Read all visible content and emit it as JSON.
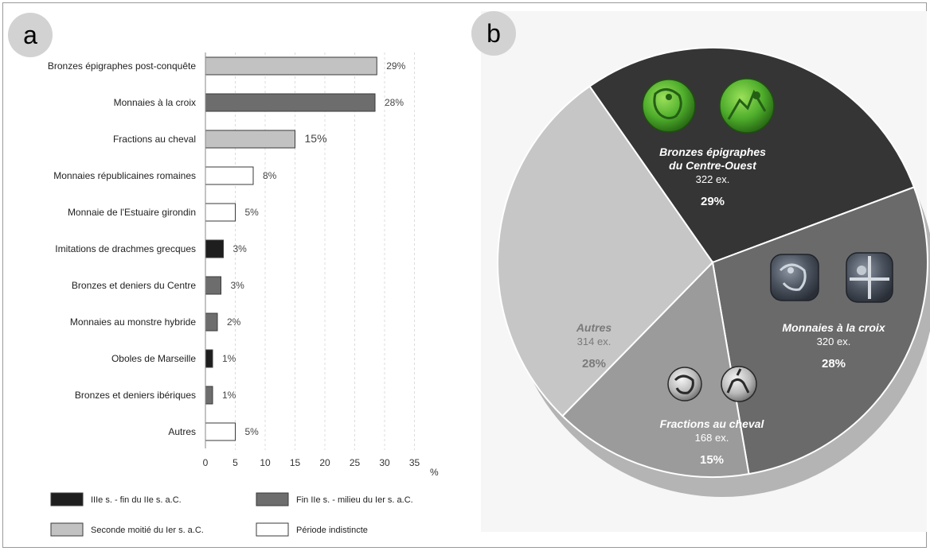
{
  "panel_a": {
    "badge": "a",
    "percent_unit": "%",
    "legend": [
      {
        "label": "IIIe s. - fin du IIe s. a.C.",
        "color": "#1e1e1e"
      },
      {
        "label": "Fin IIe s. - milieu du Ier s. a.C.",
        "color": "#6d6d6d"
      },
      {
        "label": "Seconde moitié du Ier s. a.C.",
        "color": "#c2c2c2"
      },
      {
        "label": "Période indistincte",
        "color": "#ffffff"
      }
    ]
  },
  "panel_b": {
    "badge": "b"
  },
  "chart_data": [
    {
      "type": "bar",
      "orientation": "horizontal",
      "categories": [
        "Bronzes épigraphes post-conquête",
        "Monnaies à la croix",
        "Fractions au cheval",
        "Monnaies républicaines romaines",
        "Monnaie de l'Estuaire girondin",
        "Imitations de drachmes grecques",
        "Bronzes et deniers du Centre",
        "Monnaies au monstre hybride",
        "Oboles de Marseille",
        "Bronzes et deniers ibériques",
        "Autres"
      ],
      "values": [
        28.7,
        28.4,
        15,
        8,
        5,
        3,
        2.6,
        2,
        1.2,
        1.2,
        5
      ],
      "data_labels": [
        "29%",
        "28%",
        "15%",
        "8%",
        "5%",
        "3%",
        "3%",
        "2%",
        "1%",
        "1%",
        "5%"
      ],
      "period": [
        "Seconde moitié du Ier s. a.C.",
        "Fin IIe s. - milieu du Ier s. a.C.",
        "Seconde moitié du Ier s. a.C.",
        "Période indistincte",
        "Période indistincte",
        "IIIe s. - fin du IIe s. a.C.",
        "Fin IIe s. - milieu du Ier s. a.C.",
        "Fin IIe s. - milieu du Ier s. a.C.",
        "IIIe s. - fin du IIe s. a.C.",
        "Fin IIe s. - milieu du Ier s. a.C.",
        "Période indistincte"
      ],
      "xlim": [
        0,
        35
      ],
      "xticks": [
        "0",
        "5",
        "10",
        "15",
        "20",
        "25",
        "30",
        "35"
      ],
      "xlabel": "%",
      "grid": "vertical dashed"
    },
    {
      "type": "pie",
      "slices": [
        {
          "name": "Bronzes épigraphes",
          "name2": "du Centre-Ouest",
          "count": "322 ex.",
          "label": "29%",
          "value": 29,
          "color": "#353535",
          "text_color": "#ffffff",
          "pct_color": "#ffffff"
        },
        {
          "name": "Monnaies à la croix",
          "name2": "",
          "count": "320 ex.",
          "label": "28%",
          "value": 28,
          "color": "#6a6a6a",
          "text_color": "#ffffff",
          "pct_color": "#ffffff"
        },
        {
          "name": "Fractions au cheval",
          "name2": "",
          "count": "168 ex.",
          "label": "15%",
          "value": 15,
          "color": "#9b9b9b",
          "text_color": "#ffffff",
          "pct_color": "#ffffff"
        },
        {
          "name": "Autres",
          "name2": "",
          "count": "314 ex.",
          "label": "28%",
          "value": 28,
          "color": "#c6c6c6",
          "text_color": "#7a7a7a",
          "pct_color": "#7a7a7a"
        }
      ]
    }
  ]
}
